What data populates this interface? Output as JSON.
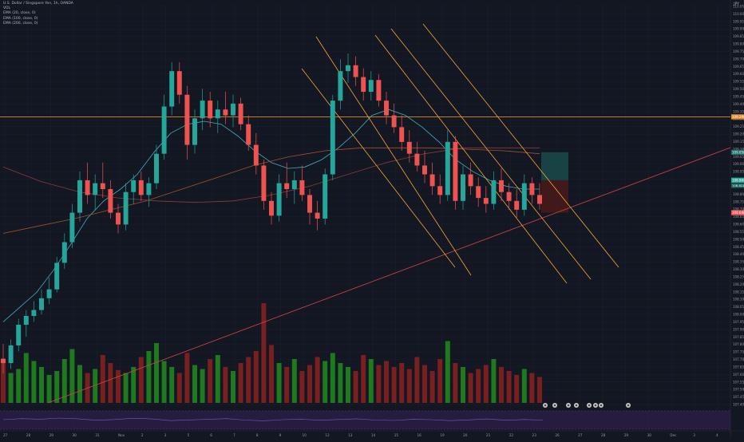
{
  "legend": {
    "symbol": "U.S. Dollar / Singapore Yen, 1h, OANDA",
    "volume": "VOL",
    "ema_fast": "EMA (20, close, 0)",
    "ema_mid": "EMA (100, close, 0)",
    "ema_slow": "EMA (200, close, 0)"
  },
  "currency": "JPY",
  "colors": {
    "background": "#131722",
    "up": "#26a69a",
    "down": "#ef5350",
    "vol_up": "#1f7a1f",
    "vol_down": "#7a1f1f",
    "ema_fast": "#3ab0c0",
    "ema_mid": "#a0522d",
    "ema_slow": "#8b3a3a",
    "channel": "#f4a636",
    "resistance": "#e08a2c",
    "trendline": "#d04545",
    "rsi_band": "#2e1f4a",
    "rsi_line": "#7e57c2",
    "target_zone": "#1a4a4a",
    "stop_zone": "#4a1a1a"
  },
  "chart_data": {
    "type": "candlestick",
    "ylim": [
      107.35,
      110.05
    ],
    "y_ticks": [
      "110.050",
      "110.000",
      "109.950",
      "109.900",
      "109.850",
      "109.800",
      "109.750",
      "109.700",
      "109.650",
      "109.600",
      "109.550",
      "109.500",
      "109.450",
      "109.400",
      "109.350",
      "109.300",
      "109.250",
      "109.200",
      "109.150",
      "109.100",
      "109.050",
      "109.000",
      "108.950",
      "108.900",
      "108.850",
      "108.800",
      "108.750",
      "108.700",
      "108.650",
      "108.600",
      "108.550",
      "108.500",
      "108.450",
      "108.400",
      "108.350",
      "108.300",
      "108.250",
      "108.200",
      "108.150",
      "108.100",
      "108.050",
      "108.000",
      "107.950",
      "107.900",
      "107.850",
      "107.800",
      "107.750",
      "107.700",
      "107.650",
      "107.600",
      "107.550",
      "107.500",
      "107.450",
      "107.400"
    ],
    "x_ticks": [
      "27",
      "28",
      "29",
      "30",
      "31",
      "Nov",
      "2",
      "3",
      "5",
      "6",
      "7",
      "8",
      "9",
      "10",
      "12",
      "13",
      "14",
      "15",
      "16",
      "19",
      "20",
      "21",
      "22",
      "23",
      "26",
      "27",
      "28",
      "29",
      "30",
      "Dec",
      "3",
      "4"
    ],
    "candles": [
      [
        107.65,
        107.75,
        107.55,
        107.62
      ],
      [
        107.62,
        107.78,
        107.58,
        107.74
      ],
      [
        107.74,
        107.92,
        107.7,
        107.88
      ],
      [
        107.88,
        107.98,
        107.8,
        107.94
      ],
      [
        107.94,
        108.04,
        107.9,
        107.98
      ],
      [
        107.98,
        108.12,
        107.95,
        108.06
      ],
      [
        108.06,
        108.2,
        108.02,
        108.12
      ],
      [
        108.12,
        108.34,
        108.1,
        108.3
      ],
      [
        108.3,
        108.5,
        108.26,
        108.44
      ],
      [
        108.44,
        108.7,
        108.4,
        108.64
      ],
      [
        108.64,
        108.92,
        108.58,
        108.86
      ],
      [
        108.86,
        108.98,
        108.7,
        108.76
      ],
      [
        108.76,
        108.9,
        108.66,
        108.84
      ],
      [
        108.84,
        108.98,
        108.74,
        108.8
      ],
      [
        108.8,
        108.86,
        108.6,
        108.64
      ],
      [
        108.64,
        108.7,
        108.5,
        108.56
      ],
      [
        108.56,
        108.84,
        108.52,
        108.78
      ],
      [
        108.78,
        108.9,
        108.7,
        108.86
      ],
      [
        108.86,
        108.92,
        108.72,
        108.76
      ],
      [
        108.76,
        108.88,
        108.68,
        108.84
      ],
      [
        108.84,
        109.1,
        108.8,
        109.04
      ],
      [
        109.04,
        109.44,
        109.0,
        109.36
      ],
      [
        109.36,
        109.66,
        109.3,
        109.6
      ],
      [
        109.6,
        109.66,
        109.38,
        109.44
      ],
      [
        109.44,
        109.5,
        109.0,
        109.1
      ],
      [
        109.1,
        109.34,
        109.04,
        109.28
      ],
      [
        109.28,
        109.48,
        109.2,
        109.4
      ],
      [
        109.4,
        109.46,
        109.22,
        109.28
      ],
      [
        109.28,
        109.4,
        109.18,
        109.34
      ],
      [
        109.34,
        109.46,
        109.24,
        109.3
      ],
      [
        109.3,
        109.44,
        109.22,
        109.38
      ],
      [
        109.38,
        109.42,
        109.2,
        109.24
      ],
      [
        109.24,
        109.3,
        109.06,
        109.1
      ],
      [
        109.1,
        109.18,
        108.9,
        108.96
      ],
      [
        108.96,
        109.0,
        108.66,
        108.72
      ],
      [
        108.72,
        108.78,
        108.56,
        108.62
      ],
      [
        108.62,
        108.9,
        108.58,
        108.84
      ],
      [
        108.84,
        108.98,
        108.74,
        108.8
      ],
      [
        108.8,
        108.92,
        108.7,
        108.86
      ],
      [
        108.86,
        108.96,
        108.72,
        108.76
      ],
      [
        108.76,
        108.8,
        108.56,
        108.64
      ],
      [
        108.64,
        108.72,
        108.52,
        108.6
      ],
      [
        108.6,
        108.94,
        108.56,
        108.9
      ],
      [
        108.9,
        109.44,
        108.86,
        109.4
      ],
      [
        109.4,
        109.68,
        109.34,
        109.6
      ],
      [
        109.6,
        109.72,
        109.52,
        109.64
      ],
      [
        109.64,
        109.7,
        109.5,
        109.56
      ],
      [
        109.56,
        109.62,
        109.4,
        109.46
      ],
      [
        109.46,
        109.6,
        109.4,
        109.54
      ],
      [
        109.54,
        109.58,
        109.36,
        109.4
      ],
      [
        109.4,
        109.46,
        109.24,
        109.3
      ],
      [
        109.3,
        109.38,
        109.18,
        109.22
      ],
      [
        109.22,
        109.3,
        109.06,
        109.12
      ],
      [
        109.12,
        109.2,
        108.98,
        109.04
      ],
      [
        109.04,
        109.12,
        108.92,
        108.96
      ],
      [
        108.96,
        109.06,
        108.84,
        108.9
      ],
      [
        108.9,
        108.98,
        108.76,
        108.82
      ],
      [
        108.82,
        108.9,
        108.7,
        108.76
      ],
      [
        108.76,
        109.2,
        108.72,
        109.12
      ],
      [
        109.12,
        109.16,
        108.66,
        108.72
      ],
      [
        108.72,
        108.96,
        108.66,
        108.9
      ],
      [
        108.9,
        108.98,
        108.76,
        108.82
      ],
      [
        108.82,
        108.88,
        108.68,
        108.74
      ],
      [
        108.74,
        108.82,
        108.64,
        108.7
      ],
      [
        108.7,
        108.92,
        108.66,
        108.86
      ],
      [
        108.86,
        108.94,
        108.72,
        108.78
      ],
      [
        108.78,
        108.84,
        108.66,
        108.72
      ],
      [
        108.72,
        108.8,
        108.6,
        108.66
      ],
      [
        108.66,
        108.9,
        108.62,
        108.84
      ],
      [
        108.84,
        108.88,
        108.7,
        108.76
      ],
      [
        108.76,
        108.84,
        108.66,
        108.7
      ]
    ],
    "volumes": [
      0.4,
      0.3,
      0.34,
      0.5,
      0.42,
      0.36,
      0.28,
      0.32,
      0.44,
      0.54,
      0.38,
      0.3,
      0.34,
      0.48,
      0.4,
      0.33,
      0.3,
      0.36,
      0.46,
      0.52,
      0.6,
      0.42,
      0.36,
      0.3,
      0.5,
      0.38,
      0.34,
      0.44,
      0.48,
      0.36,
      0.32,
      0.4,
      0.46,
      0.52,
      1.0,
      0.58,
      0.4,
      0.36,
      0.44,
      0.32,
      0.38,
      0.46,
      0.42,
      0.5,
      0.4,
      0.36,
      0.32,
      0.48,
      0.44,
      0.38,
      0.42,
      0.36,
      0.4,
      0.34,
      0.46,
      0.38,
      0.32,
      0.44,
      0.62,
      0.4,
      0.36,
      0.3,
      0.34,
      0.38,
      0.44,
      0.36,
      0.32,
      0.28,
      0.34,
      0.3,
      0.26
    ],
    "ema_fast": [
      107.9,
      108.0,
      108.1,
      108.25,
      108.42,
      108.6,
      108.72,
      108.8,
      108.9,
      109.05,
      109.18,
      109.24,
      109.26,
      109.24,
      109.16,
      109.06,
      108.98,
      108.94,
      108.95,
      109.0,
      109.08,
      109.18,
      109.3,
      109.34,
      109.3,
      109.22,
      109.12,
      109.0,
      108.92,
      108.86,
      108.82,
      108.8,
      108.8
    ],
    "ema_mid": [
      108.5,
      108.55,
      108.6,
      108.66,
      108.72,
      108.8,
      108.88,
      108.96,
      109.02,
      109.06,
      109.08,
      109.08,
      109.08,
      109.07,
      109.06,
      109.04
    ],
    "ema_slow": [
      108.95,
      108.85,
      108.78,
      108.74,
      108.72,
      108.71,
      108.72,
      108.76,
      108.82,
      108.9,
      108.98,
      109.04,
      109.08,
      109.08,
      109.08
    ],
    "resistance_level": 109.29,
    "right_labels": {
      "resistance": "109.290",
      "target": "109.050",
      "current": "108.860",
      "current_sub": "108.821",
      "stop": "108.640"
    },
    "rsi_ylim": [
      0,
      100
    ],
    "rsi_values": [
      52,
      58,
      55,
      61,
      57,
      49,
      53,
      60,
      56,
      47,
      51,
      54,
      58,
      50,
      46,
      52,
      55,
      49,
      53,
      57,
      50,
      48,
      54,
      52,
      47,
      51,
      56,
      49,
      53,
      50
    ]
  }
}
